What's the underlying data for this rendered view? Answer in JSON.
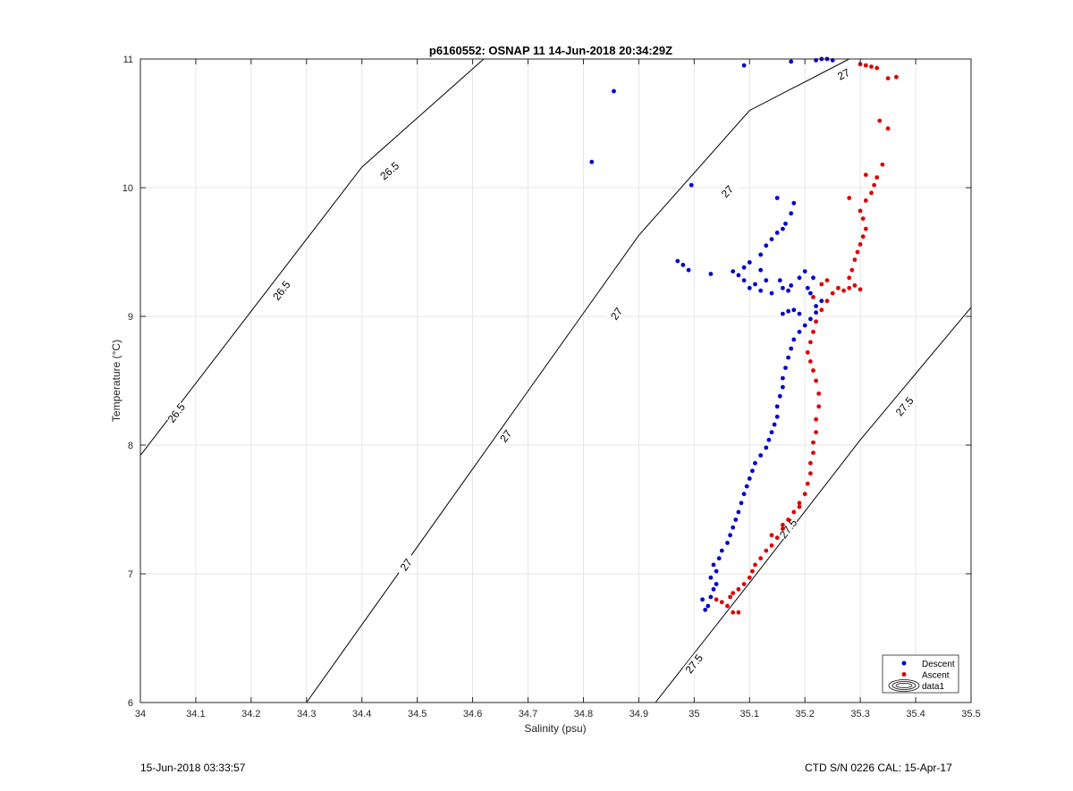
{
  "chart_data": {
    "type": "scatter",
    "title": "p6160552: OSNAP 11 14-Jun-2018 20:34:29Z",
    "xlabel": "Salinity (psu)",
    "ylabel": "Temperature (°C)",
    "xlim": [
      34,
      35.5
    ],
    "ylim": [
      6,
      11
    ],
    "xticks": [
      "34",
      "34.1",
      "34.2",
      "34.3",
      "34.4",
      "34.5",
      "34.6",
      "34.7",
      "34.8",
      "34.9",
      "35",
      "35.1",
      "35.2",
      "35.3",
      "35.4",
      "35.5"
    ],
    "yticks": [
      "6",
      "7",
      "8",
      "9",
      "10",
      "11"
    ],
    "grid": true,
    "legend_position": "bottom-right",
    "legend": [
      {
        "name": "Descent",
        "color": "#0000cc"
      },
      {
        "name": "Ascent",
        "color": "#dd0000"
      },
      {
        "name": "data1",
        "color": "#000000"
      }
    ],
    "contours": [
      {
        "level": "26.5",
        "points": [
          [
            34.0,
            7.92
          ],
          [
            34.2,
            9.04
          ],
          [
            34.4,
            10.16
          ],
          [
            34.62,
            11.0
          ]
        ],
        "labels": [
          [
            34.065,
            8.25
          ],
          [
            34.255,
            9.2
          ],
          [
            34.45,
            10.13
          ]
        ]
      },
      {
        "level": "27",
        "points": [
          [
            34.3,
            6.0
          ],
          [
            34.5,
            7.21
          ],
          [
            34.7,
            8.42
          ],
          [
            34.9,
            9.63
          ],
          [
            35.1,
            10.6
          ],
          [
            35.28,
            11.0
          ]
        ],
        "labels": [
          [
            34.48,
            7.07
          ],
          [
            34.66,
            8.07
          ],
          [
            34.86,
            9.02
          ],
          [
            35.06,
            9.97
          ],
          [
            35.27,
            10.88
          ]
        ]
      },
      {
        "level": "27.5",
        "points": [
          [
            34.93,
            6.0
          ],
          [
            35.1,
            6.93
          ],
          [
            35.3,
            8.04
          ],
          [
            35.5,
            9.07
          ]
        ],
        "labels": [
          [
            35.0,
            6.3
          ],
          [
            35.17,
            7.35
          ],
          [
            35.38,
            8.3
          ]
        ]
      }
    ],
    "series": [
      {
        "name": "Descent",
        "color": "#0000cc",
        "points": [
          [
            35.02,
            6.72
          ],
          [
            35.025,
            6.75
          ],
          [
            35.015,
            6.8
          ],
          [
            35.03,
            6.82
          ],
          [
            35.035,
            6.88
          ],
          [
            35.04,
            6.92
          ],
          [
            35.03,
            6.97
          ],
          [
            35.04,
            7.02
          ],
          [
            35.035,
            7.07
          ],
          [
            35.045,
            7.12
          ],
          [
            35.05,
            7.18
          ],
          [
            35.06,
            7.24
          ],
          [
            35.065,
            7.3
          ],
          [
            35.07,
            7.36
          ],
          [
            35.075,
            7.42
          ],
          [
            35.08,
            7.48
          ],
          [
            35.085,
            7.55
          ],
          [
            35.09,
            7.62
          ],
          [
            35.095,
            7.68
          ],
          [
            35.1,
            7.74
          ],
          [
            35.105,
            7.8
          ],
          [
            35.11,
            7.86
          ],
          [
            35.12,
            7.92
          ],
          [
            35.13,
            7.98
          ],
          [
            35.135,
            8.04
          ],
          [
            35.14,
            8.1
          ],
          [
            35.145,
            8.16
          ],
          [
            35.15,
            8.22
          ],
          [
            35.15,
            8.3
          ],
          [
            35.155,
            8.38
          ],
          [
            35.16,
            8.45
          ],
          [
            35.16,
            8.52
          ],
          [
            35.165,
            8.6
          ],
          [
            35.17,
            8.68
          ],
          [
            35.175,
            8.75
          ],
          [
            35.18,
            8.82
          ],
          [
            35.19,
            8.88
          ],
          [
            35.2,
            8.93
          ],
          [
            35.21,
            8.98
          ],
          [
            35.22,
            9.03
          ],
          [
            35.22,
            9.08
          ],
          [
            35.23,
            9.12
          ],
          [
            35.21,
            9.18
          ],
          [
            35.205,
            9.22
          ],
          [
            35.215,
            9.3
          ],
          [
            35.2,
            9.35
          ],
          [
            35.19,
            9.3
          ],
          [
            35.175,
            9.24
          ],
          [
            35.16,
            9.22
          ],
          [
            35.14,
            9.18
          ],
          [
            35.12,
            9.2
          ],
          [
            35.1,
            9.22
          ],
          [
            35.09,
            9.28
          ],
          [
            35.08,
            9.32
          ],
          [
            35.07,
            9.35
          ],
          [
            35.09,
            9.38
          ],
          [
            35.1,
            9.42
          ],
          [
            35.12,
            9.48
          ],
          [
            35.13,
            9.55
          ],
          [
            35.14,
            9.6
          ],
          [
            35.15,
            9.65
          ],
          [
            35.16,
            9.68
          ],
          [
            35.165,
            9.72
          ],
          [
            35.175,
            9.8
          ],
          [
            35.18,
            9.88
          ],
          [
            35.15,
            9.92
          ],
          [
            35.17,
            9.04
          ],
          [
            35.16,
            9.02
          ],
          [
            35.18,
            9.05
          ],
          [
            35.19,
            9.02
          ],
          [
            35.13,
            9.28
          ],
          [
            35.11,
            9.25
          ],
          [
            34.97,
            9.43
          ],
          [
            34.98,
            9.4
          ],
          [
            34.99,
            9.36
          ],
          [
            35.03,
            9.33
          ],
          [
            34.815,
            10.2
          ],
          [
            34.855,
            10.75
          ],
          [
            34.995,
            10.02
          ],
          [
            35.09,
            10.95
          ],
          [
            35.175,
            10.98
          ],
          [
            35.22,
            10.99
          ],
          [
            35.23,
            11.0
          ],
          [
            35.24,
            11.0
          ],
          [
            35.25,
            10.99
          ],
          [
            35.155,
            9.28
          ],
          [
            35.17,
            9.2
          ],
          [
            35.12,
            9.36
          ]
        ]
      },
      {
        "name": "Ascent",
        "color": "#dd0000",
        "points": [
          [
            35.07,
            6.7
          ],
          [
            35.08,
            6.7
          ],
          [
            35.06,
            6.75
          ],
          [
            35.05,
            6.78
          ],
          [
            35.04,
            6.8
          ],
          [
            35.065,
            6.82
          ],
          [
            35.07,
            6.85
          ],
          [
            35.08,
            6.88
          ],
          [
            35.09,
            6.92
          ],
          [
            35.1,
            6.97
          ],
          [
            35.105,
            7.02
          ],
          [
            35.11,
            7.07
          ],
          [
            35.12,
            7.12
          ],
          [
            35.13,
            7.18
          ],
          [
            35.14,
            7.22
          ],
          [
            35.15,
            7.28
          ],
          [
            35.16,
            7.35
          ],
          [
            35.17,
            7.42
          ],
          [
            35.18,
            7.48
          ],
          [
            35.19,
            7.55
          ],
          [
            35.2,
            7.62
          ],
          [
            35.205,
            7.7
          ],
          [
            35.21,
            7.78
          ],
          [
            35.21,
            7.86
          ],
          [
            35.215,
            7.94
          ],
          [
            35.215,
            8.02
          ],
          [
            35.22,
            8.1
          ],
          [
            35.22,
            8.2
          ],
          [
            35.225,
            8.3
          ],
          [
            35.225,
            8.4
          ],
          [
            35.22,
            8.5
          ],
          [
            35.215,
            8.58
          ],
          [
            35.21,
            8.65
          ],
          [
            35.205,
            8.72
          ],
          [
            35.21,
            8.8
          ],
          [
            35.215,
            8.88
          ],
          [
            35.22,
            8.96
          ],
          [
            35.23,
            9.05
          ],
          [
            35.24,
            9.12
          ],
          [
            35.25,
            9.18
          ],
          [
            35.26,
            9.22
          ],
          [
            35.27,
            9.2
          ],
          [
            35.28,
            9.22
          ],
          [
            35.3,
            9.21
          ],
          [
            35.29,
            9.24
          ],
          [
            35.28,
            9.3
          ],
          [
            35.285,
            9.36
          ],
          [
            35.29,
            9.44
          ],
          [
            35.295,
            9.5
          ],
          [
            35.3,
            9.56
          ],
          [
            35.305,
            9.62
          ],
          [
            35.31,
            9.68
          ],
          [
            35.305,
            9.76
          ],
          [
            35.3,
            9.82
          ],
          [
            35.31,
            9.9
          ],
          [
            35.32,
            9.96
          ],
          [
            35.325,
            10.02
          ],
          [
            35.31,
            10.1
          ],
          [
            35.33,
            10.08
          ],
          [
            35.34,
            10.18
          ],
          [
            35.335,
            10.52
          ],
          [
            35.35,
            10.46
          ],
          [
            35.31,
            10.95
          ],
          [
            35.3,
            10.96
          ],
          [
            35.32,
            10.94
          ],
          [
            35.33,
            10.93
          ],
          [
            35.35,
            10.85
          ],
          [
            35.365,
            10.86
          ],
          [
            35.28,
            9.92
          ],
          [
            35.24,
            9.28
          ],
          [
            35.23,
            9.25
          ],
          [
            35.215,
            9.15
          ],
          [
            35.19,
            7.52
          ],
          [
            35.16,
            7.38
          ],
          [
            35.14,
            7.3
          ]
        ]
      }
    ]
  },
  "footer": {
    "left": "15-Jun-2018 03:33:57",
    "right": "CTD S/N 0226  CAL: 15-Apr-17"
  }
}
